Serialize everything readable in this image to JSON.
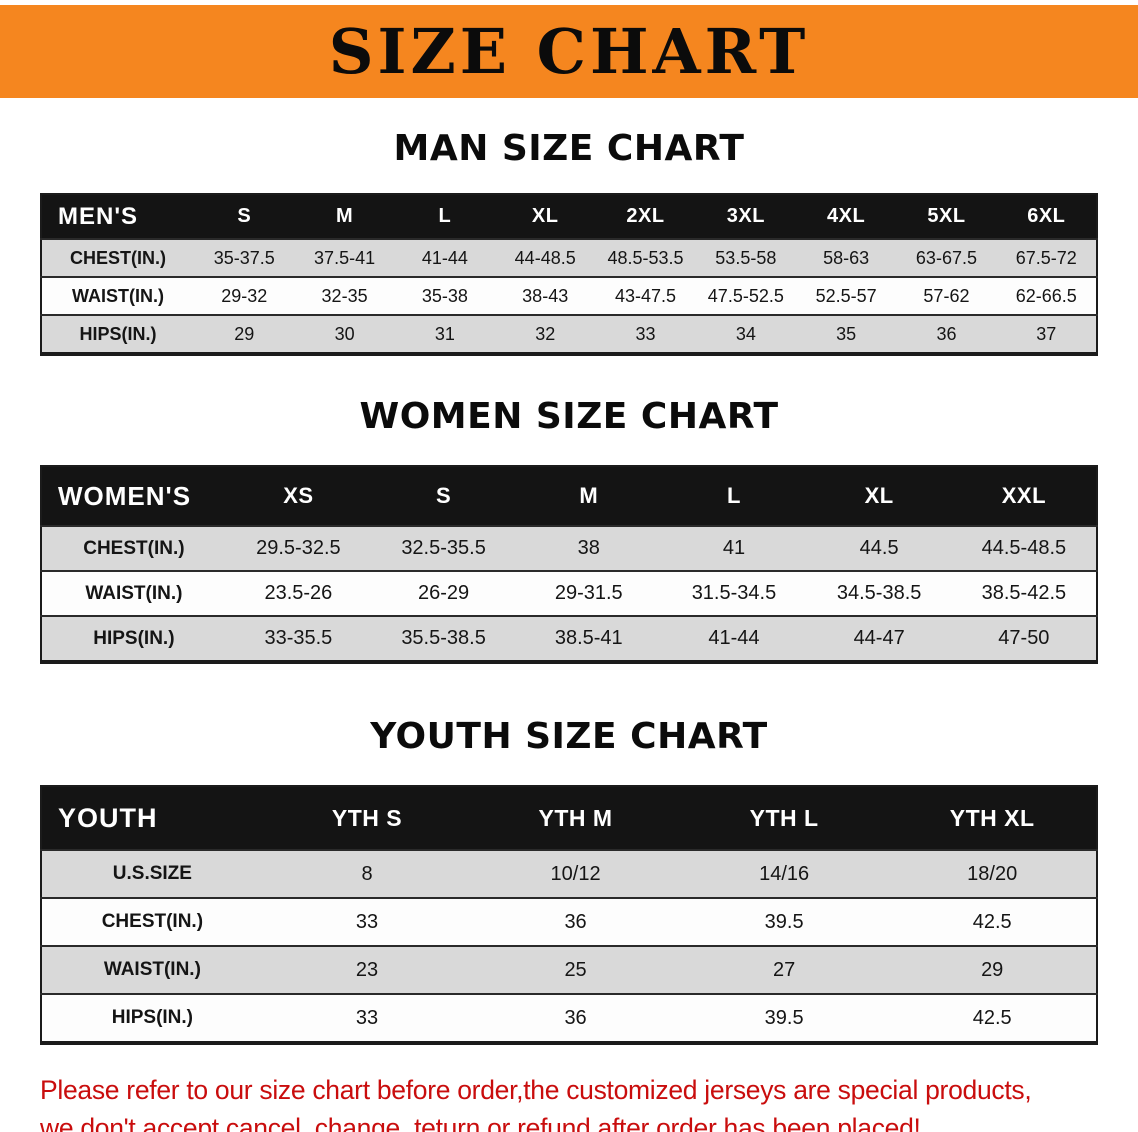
{
  "banner": {
    "title": "SIZE CHART"
  },
  "colors": {
    "banner_bg": "#F5861F",
    "table_header_bg": "#141414",
    "shaded_row_bg": "#D9D9D9",
    "note_red": "#C90D0D"
  },
  "sections": [
    {
      "heading": "MAN SIZE CHART",
      "table": {
        "name": "mens",
        "header": [
          "MEN'S",
          "S",
          "M",
          "L",
          "XL",
          "2XL",
          "3XL",
          "4XL",
          "5XL",
          "6XL"
        ],
        "rows": [
          [
            "CHEST(IN.)",
            "35-37.5",
            "37.5-41",
            "41-44",
            "44-48.5",
            "48.5-53.5",
            "53.5-58",
            "58-63",
            "63-67.5",
            "67.5-72"
          ],
          [
            "WAIST(IN.)",
            "29-32",
            "32-35",
            "35-38",
            "38-43",
            "43-47.5",
            "47.5-52.5",
            "52.5-57",
            "57-62",
            "62-66.5"
          ],
          [
            "HIPS(IN.)",
            "29",
            "30",
            "31",
            "32",
            "33",
            "34",
            "35",
            "36",
            "37"
          ]
        ],
        "shaded_rows": [
          0,
          2
        ]
      }
    },
    {
      "heading": "WOMEN SIZE CHART",
      "table": {
        "name": "womens",
        "header": [
          "WOMEN'S",
          "XS",
          "S",
          "M",
          "L",
          "XL",
          "XXL"
        ],
        "rows": [
          [
            "CHEST(IN.)",
            "29.5-32.5",
            "32.5-35.5",
            "38",
            "41",
            "44.5",
            "44.5-48.5"
          ],
          [
            "WAIST(IN.)",
            "23.5-26",
            "26-29",
            "29-31.5",
            "31.5-34.5",
            "34.5-38.5",
            "38.5-42.5"
          ],
          [
            "HIPS(IN.)",
            "33-35.5",
            "35.5-38.5",
            "38.5-41",
            "41-44",
            "44-47",
            "47-50"
          ]
        ],
        "shaded_rows": [
          0,
          2
        ]
      }
    },
    {
      "heading": "YOUTH SIZE CHART",
      "table": {
        "name": "youth",
        "header": [
          "YOUTH",
          "YTH S",
          "YTH M",
          "YTH L",
          "YTH XL"
        ],
        "rows": [
          [
            "U.S.SIZE",
            "8",
            "10/12",
            "14/16",
            "18/20"
          ],
          [
            "CHEST(IN.)",
            "33",
            "36",
            "39.5",
            "42.5"
          ],
          [
            "WAIST(IN.)",
            "23",
            "25",
            "27",
            "29"
          ],
          [
            "HIPS(IN.)",
            "33",
            "36",
            "39.5",
            "42.5"
          ]
        ],
        "shaded_rows": [
          0,
          2
        ]
      }
    }
  ],
  "note": {
    "line1": "Please refer to our size chart before order,the customized jerseys are special products,",
    "line2": "we don't accept cancel, change, teturn or refund after order has been placed!"
  }
}
